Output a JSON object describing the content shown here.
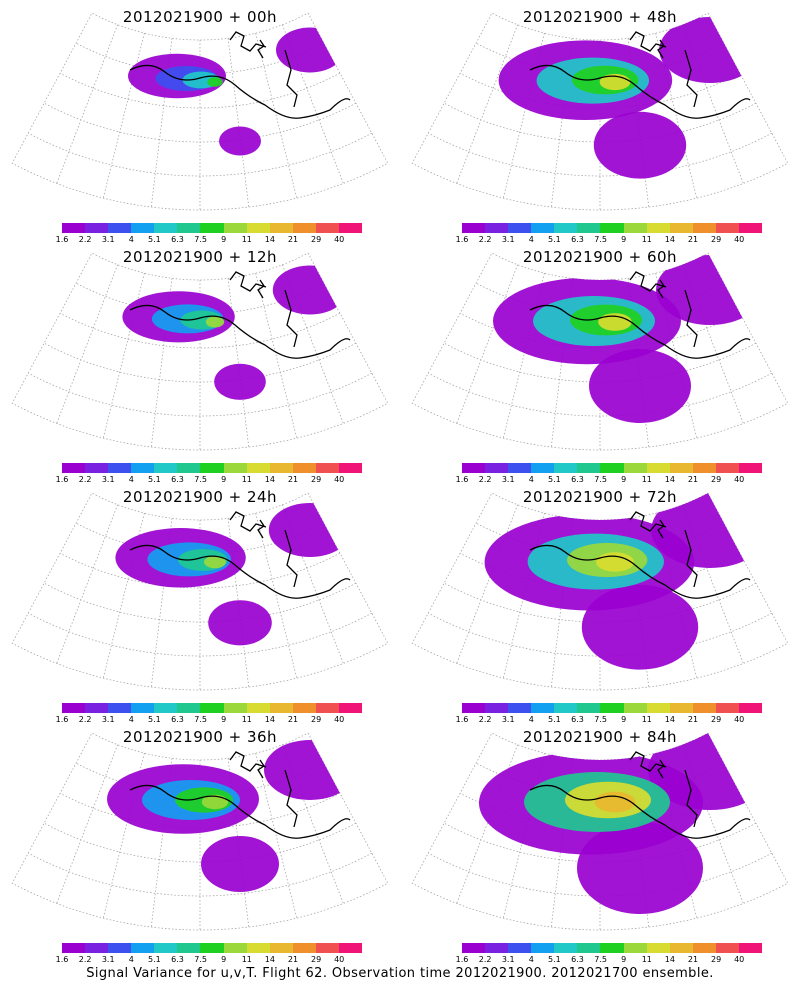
{
  "footer": "Signal Variance for u,v,T. Flight 62. Observation time 2012021900. 2012021700 ensemble.",
  "colorbar": {
    "labels": [
      "1.6",
      "2.2",
      "3.1",
      "4",
      "5.1",
      "6.3",
      "7.5",
      "9",
      "11",
      "14",
      "21",
      "29",
      "40"
    ],
    "colors": [
      "#9a00d0",
      "#7a20e0",
      "#3c50f0",
      "#14a0f0",
      "#20c8c8",
      "#20c890",
      "#20d020",
      "#9ad83c",
      "#d8dc30",
      "#e8b830",
      "#f0902c",
      "#f05050",
      "#f01478"
    ]
  },
  "panels": [
    {
      "title": "2012021900 + 00h",
      "intensity": 0.0,
      "spread": 0.1
    },
    {
      "title": "2012021900 + 12h",
      "intensity": 0.2,
      "spread": 0.18
    },
    {
      "title": "2012021900 + 24h",
      "intensity": 0.3,
      "spread": 0.28
    },
    {
      "title": "2012021900 + 36h",
      "intensity": 0.4,
      "spread": 0.4
    },
    {
      "title": "2012021900 + 48h",
      "intensity": 0.5,
      "spread": 0.52
    },
    {
      "title": "2012021900 + 60h",
      "intensity": 0.5,
      "spread": 0.6
    },
    {
      "title": "2012021900 + 72h",
      "intensity": 0.7,
      "spread": 0.72
    },
    {
      "title": "2012021900 + 84h",
      "intensity": 0.9,
      "spread": 0.8
    }
  ]
}
